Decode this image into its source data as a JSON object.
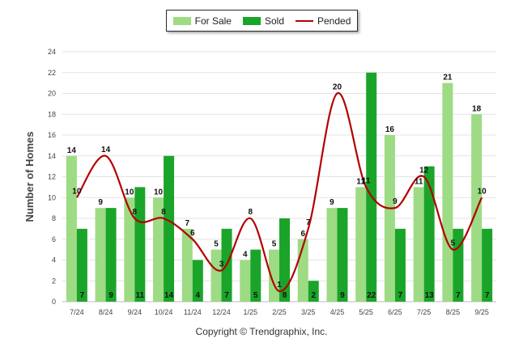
{
  "chart_data": {
    "type": "bar",
    "title": "",
    "xlabel": "",
    "ylabel": "Number of Homes",
    "ylim": [
      0,
      24
    ],
    "yticks": [
      0,
      2,
      4,
      6,
      8,
      10,
      12,
      14,
      16,
      18,
      20,
      22,
      24
    ],
    "categories": [
      "7/24",
      "8/24",
      "9/24",
      "10/24",
      "11/24",
      "12/24",
      "1/25",
      "2/25",
      "3/25",
      "4/25",
      "5/25",
      "6/25",
      "7/25",
      "8/25",
      "9/25"
    ],
    "series": [
      {
        "name": "For Sale",
        "kind": "bar",
        "color": "#9ddb84",
        "values": [
          14,
          9,
          10,
          10,
          7,
          5,
          4,
          5,
          6,
          9,
          11,
          16,
          11,
          21,
          18
        ]
      },
      {
        "name": "Sold",
        "kind": "bar",
        "color": "#1aa52a",
        "values": [
          7,
          9,
          11,
          14,
          4,
          7,
          5,
          8,
          2,
          9,
          22,
          7,
          13,
          7,
          7
        ]
      },
      {
        "name": "Pended",
        "kind": "line",
        "color": "#b30000",
        "values": [
          10,
          14,
          8,
          8,
          6,
          3,
          8,
          1,
          7,
          20,
          11,
          9,
          12,
          5,
          10
        ]
      }
    ],
    "legend_position": "top-center",
    "grid": true
  },
  "footer": {
    "copyright": "Copyright © Trendgraphix, Inc."
  }
}
